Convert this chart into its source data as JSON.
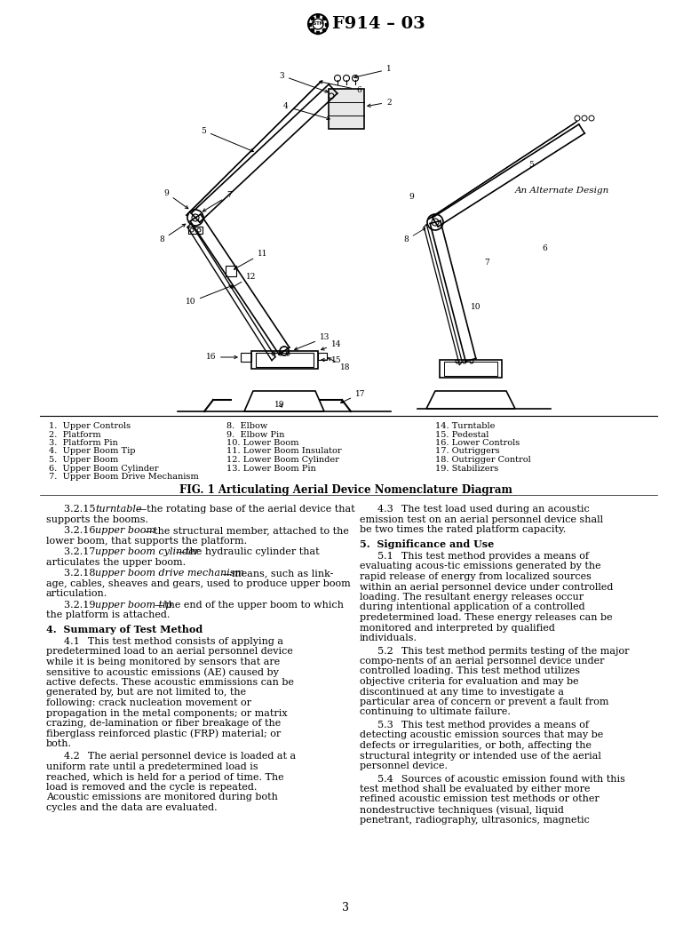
{
  "title": "F914 – 03",
  "fig_caption": "FIG. 1 Articulating Aerial Device Nomenclature Diagram",
  "page_number": "3",
  "legend_items_col1": [
    "1.  Upper Controls",
    "2.  Platform",
    "3.  Platform Pin",
    "4.  Upper Boom Tip",
    "5.  Upper Boom",
    "6.  Upper Boom Cylinder",
    "7.  Upper Boom Drive Mechanism"
  ],
  "legend_items_col2": [
    "8.  Elbow",
    "9.  Elbow Pin",
    "10. Lower Boom",
    "11. Lower Boom Insulator",
    "12. Lower Boom Cylinder",
    "13. Lower Boom Pin"
  ],
  "legend_items_col3": [
    "14. Turntable",
    "15. Pedestal",
    "16. Lower Controls",
    "17. Outriggers",
    "18. Outrigger Control",
    "19. Stabilizers"
  ],
  "alt_design_label": "An Alternate Design",
  "section4_title": "4.  Summary of Test Method",
  "section43_text": "4.3  The test load used during an acoustic emission test on an aerial personnel device shall be two times the rated platform capacity.",
  "section5_title": "5.  Significance and Use",
  "background_color": "#ffffff",
  "text_color": "#000000",
  "body_font_size": 8.0,
  "legend_font_size": 7.0,
  "title_font_size": 14
}
